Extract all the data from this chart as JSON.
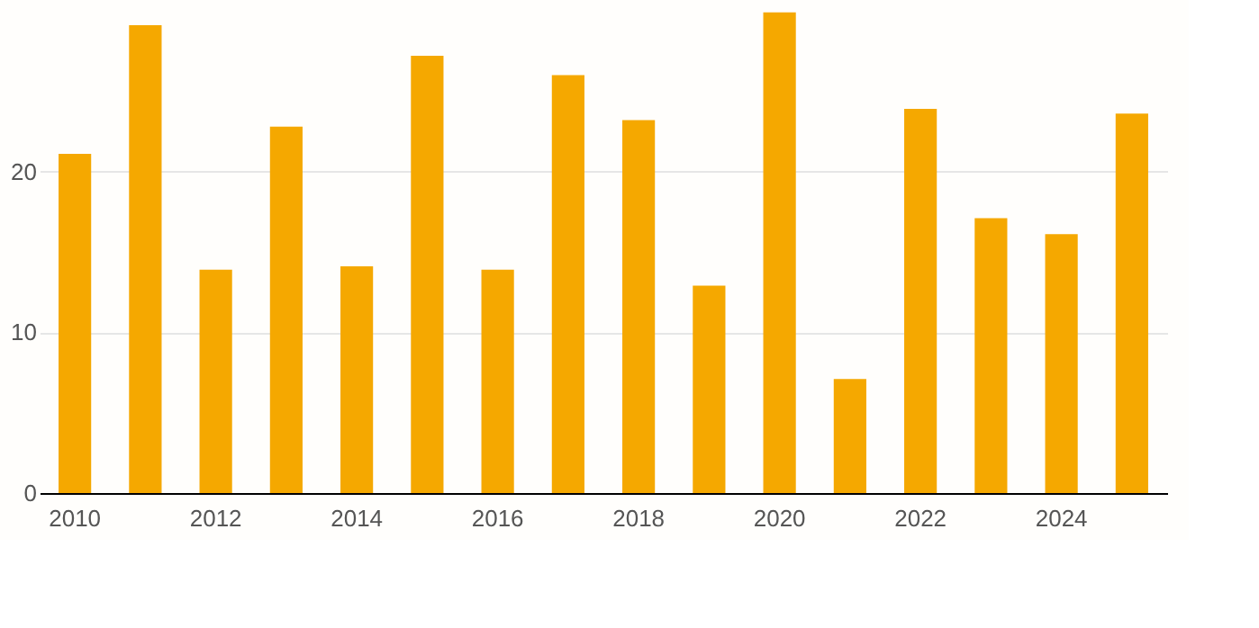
{
  "chart_data": {
    "type": "bar",
    "categories": [
      "2010",
      null,
      "2012",
      null,
      "2014",
      null,
      "2016",
      null,
      "2018",
      null,
      "2020",
      null,
      "2022",
      null,
      "2024",
      null
    ],
    "values": [
      21.1,
      29.1,
      13.9,
      22.8,
      14.1,
      27.2,
      13.9,
      26.0,
      23.2,
      12.9,
      29.9,
      7.1,
      23.9,
      17.1,
      16.1,
      23.6
    ],
    "color": "#f5a800",
    "ylim": [
      0,
      30
    ],
    "yticks": [
      0,
      10,
      20
    ],
    "grid": "y"
  }
}
